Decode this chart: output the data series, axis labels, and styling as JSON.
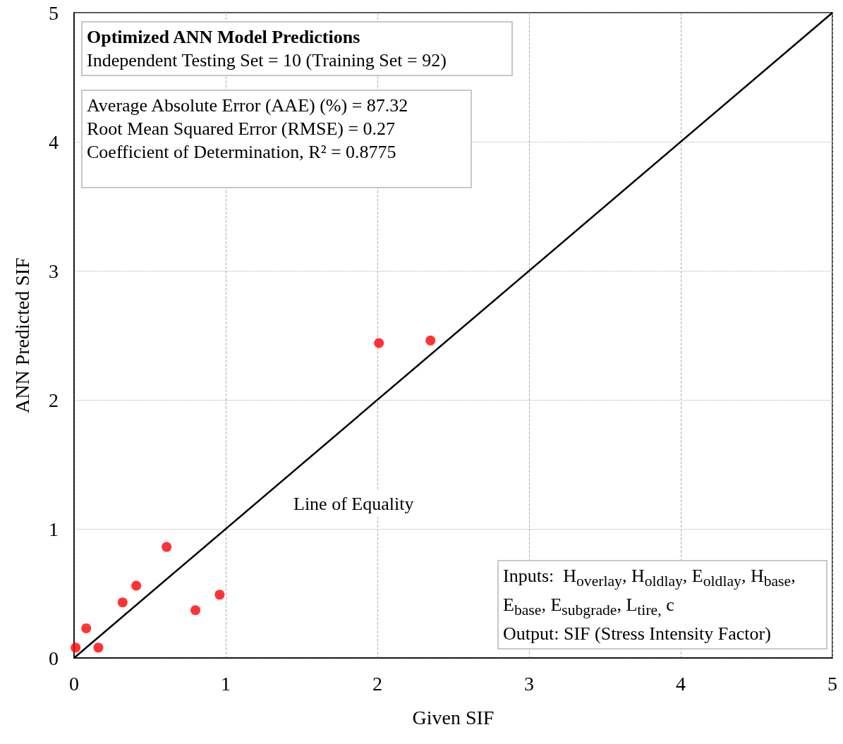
{
  "chart_data": {
    "type": "scatter",
    "title": "Optimized ANN Model Predictions",
    "subtitle": "Independent Testing Set = 10 (Training Set = 92)",
    "xlabel": "Given SIF",
    "ylabel": "ANN Predicted SIF",
    "annotations": [
      "Average Absolute Error (AAE) (%) = 87.32\nRoot Mean Squared Error (RMSE) = 0.27\nCoefficient of Determination, R² = 0.8775",
      "Inputs:  H$_{overlay}$, H$_{oldlay}$, E$_{oldlay}$, H$_{base}$,\nE$_{base}$, E$_{subgrade}$, L$_{tire,}$ c\nOutput: SIF (Stress Intensity Factor)",
      "Line of Equality"
    ],
    "series": [
      {
        "color": "#ff0000",
        "marker": "circle",
        "x": [
          0.01,
          0.08,
          0.16,
          0.32,
          0.41,
          0.61,
          0.8,
          0.96,
          2.01,
          2.35
        ],
        "values": [
          0.08,
          0.23,
          0.08,
          0.43,
          0.56,
          0.86,
          0.37,
          0.49,
          2.44,
          2.46
        ]
      },
      {
        "type": "line",
        "color": "#000000",
        "marker": "none",
        "x": [
          0,
          5
        ],
        "values": [
          0,
          5
        ]
      }
    ],
    "xlim": [
      0,
      5
    ],
    "xticks": [
      0,
      1,
      2,
      3,
      4,
      5
    ],
    "ylim": [
      0,
      5
    ],
    "yticks": [
      0,
      1,
      2,
      3,
      4,
      5
    ],
    "grid": true
  }
}
